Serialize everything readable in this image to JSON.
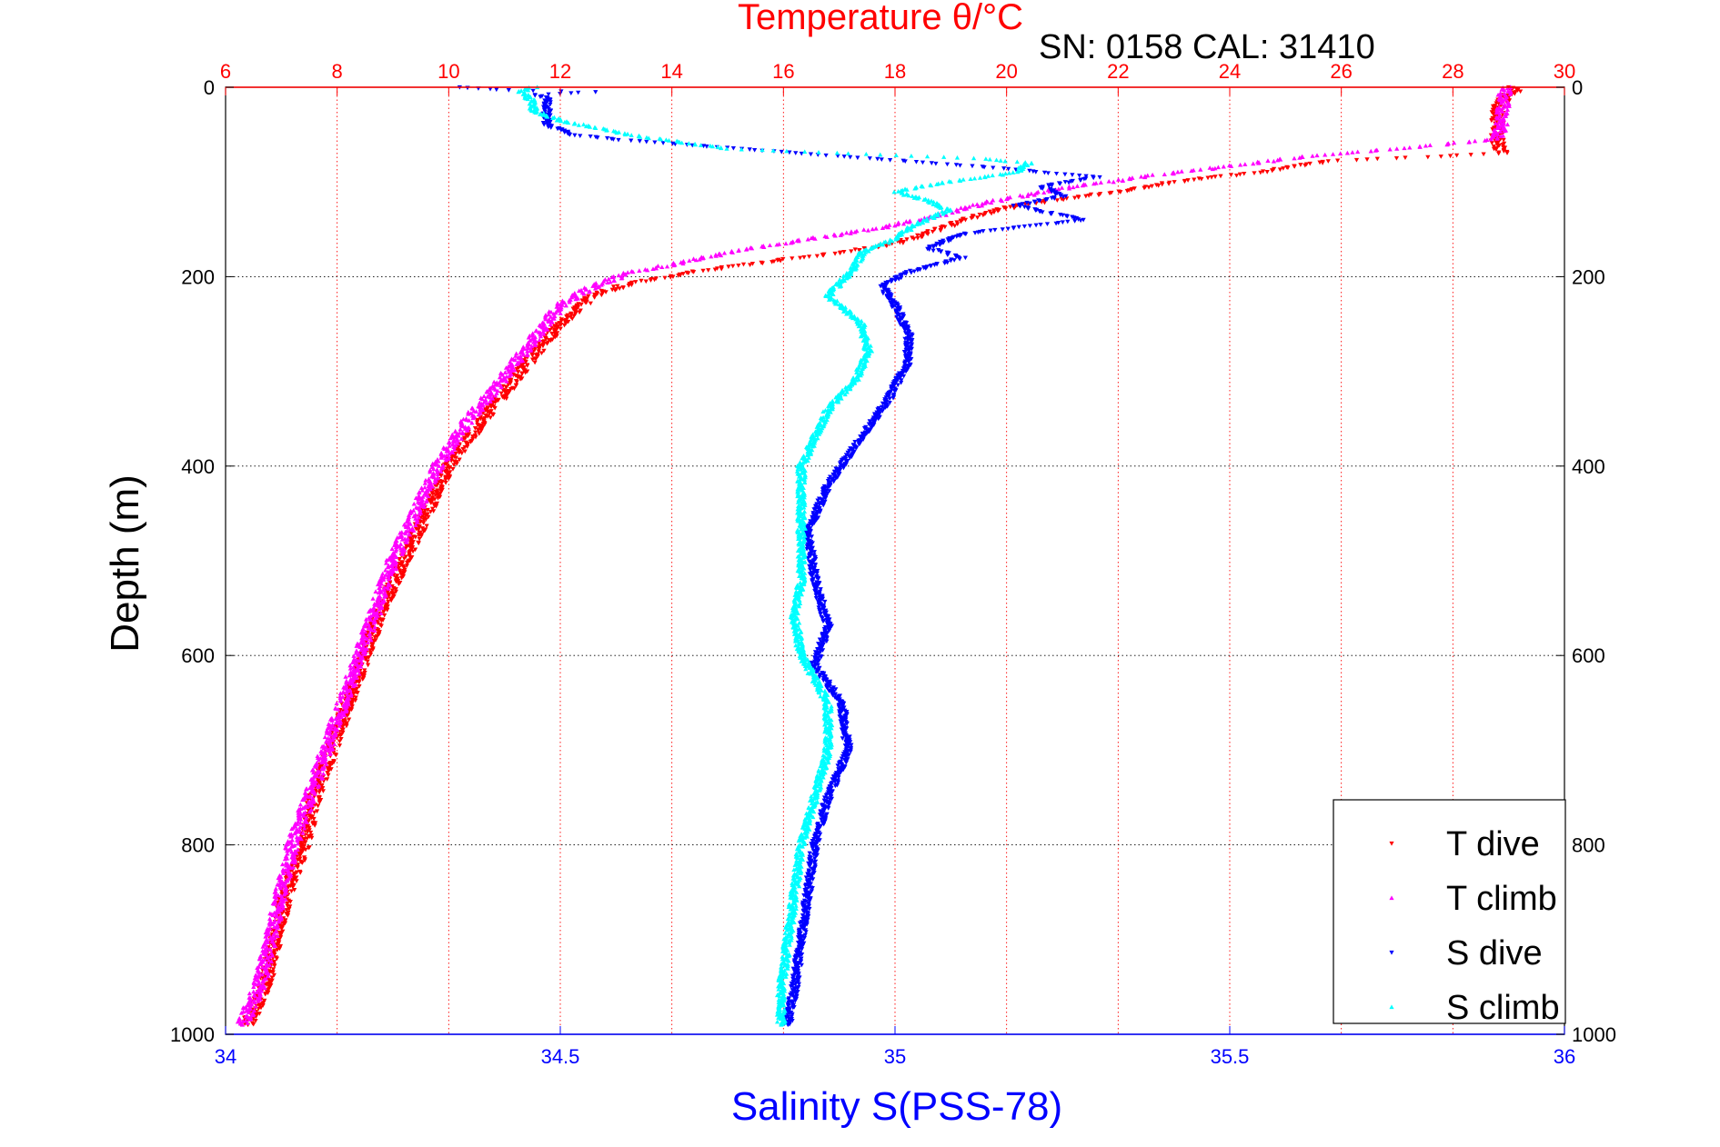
{
  "chart_data": {
    "type": "scatter",
    "title": "Temperature θ/°C",
    "annotation": "SN: 0158  CAL: 31410",
    "ylabel": "Depth (m)",
    "xlabel_bottom": "Salinity S(PSS-78)",
    "xlabel_top": "Temperature θ/°C",
    "ylim": [
      0,
      1000
    ],
    "y_reversed": true,
    "y_ticks": [
      0,
      200,
      400,
      600,
      800,
      1000
    ],
    "x_bottom": {
      "range": [
        34,
        36
      ],
      "ticks": [
        34,
        34.5,
        35,
        35.5,
        36
      ],
      "tick_labels": [
        "34",
        "34.5",
        "35",
        "35.5",
        "36"
      ],
      "color": "#0000ff"
    },
    "x_top": {
      "range": [
        6,
        30
      ],
      "ticks": [
        6,
        8,
        10,
        12,
        14,
        16,
        18,
        20,
        22,
        24,
        26,
        28,
        30
      ],
      "tick_labels": [
        "6",
        "8",
        "10",
        "12",
        "14",
        "16",
        "18",
        "20",
        "22",
        "24",
        "26",
        "28",
        "30"
      ],
      "color": "#ff0000"
    },
    "grid": true,
    "legend_position": "bottom-right",
    "series": [
      {
        "name": "T dive",
        "axis": "top",
        "marker": "triangle-down",
        "color": "#ff0000",
        "points": [
          [
            29.0,
            0
          ],
          [
            29.2,
            2
          ],
          [
            29.0,
            8
          ],
          [
            28.8,
            20
          ],
          [
            28.8,
            40
          ],
          [
            28.8,
            60
          ],
          [
            28.9,
            70
          ],
          [
            25.8,
            78
          ],
          [
            24.5,
            90
          ],
          [
            23.0,
            100
          ],
          [
            22.0,
            110
          ],
          [
            21.0,
            118
          ],
          [
            20.2,
            125
          ],
          [
            19.5,
            135
          ],
          [
            18.8,
            150
          ],
          [
            18.0,
            165
          ],
          [
            17.0,
            175
          ],
          [
            16.0,
            182
          ],
          [
            15.0,
            190
          ],
          [
            14.4,
            195
          ],
          [
            14.0,
            200
          ],
          [
            13.2,
            208
          ],
          [
            12.6,
            220
          ],
          [
            12.2,
            240
          ],
          [
            11.7,
            270
          ],
          [
            11.3,
            300
          ],
          [
            10.9,
            330
          ],
          [
            10.5,
            360
          ],
          [
            10.0,
            400
          ],
          [
            9.6,
            450
          ],
          [
            9.2,
            500
          ],
          [
            8.8,
            550
          ],
          [
            8.5,
            600
          ],
          [
            8.2,
            650
          ],
          [
            7.9,
            700
          ],
          [
            7.6,
            750
          ],
          [
            7.4,
            800
          ],
          [
            7.1,
            850
          ],
          [
            6.9,
            900
          ],
          [
            6.7,
            950
          ],
          [
            6.4,
            990
          ]
        ]
      },
      {
        "name": "T climb",
        "axis": "top",
        "marker": "triangle-up",
        "color": "#ff00ff",
        "points": [
          [
            29.0,
            0
          ],
          [
            28.9,
            10
          ],
          [
            28.9,
            30
          ],
          [
            28.8,
            55
          ],
          [
            27.0,
            65
          ],
          [
            25.5,
            72
          ],
          [
            24.2,
            82
          ],
          [
            22.8,
            92
          ],
          [
            21.2,
            105
          ],
          [
            19.8,
            120
          ],
          [
            18.8,
            135
          ],
          [
            17.8,
            148
          ],
          [
            16.5,
            160
          ],
          [
            15.2,
            172
          ],
          [
            14.2,
            185
          ],
          [
            13.3,
            195
          ],
          [
            12.6,
            210
          ],
          [
            12.0,
            230
          ],
          [
            11.6,
            260
          ],
          [
            11.2,
            290
          ],
          [
            10.8,
            320
          ],
          [
            10.3,
            355
          ],
          [
            9.8,
            400
          ],
          [
            9.4,
            450
          ],
          [
            9.0,
            500
          ],
          [
            8.7,
            550
          ],
          [
            8.4,
            600
          ],
          [
            8.1,
            650
          ],
          [
            7.8,
            700
          ],
          [
            7.5,
            750
          ],
          [
            7.2,
            800
          ],
          [
            7.0,
            850
          ],
          [
            6.8,
            900
          ],
          [
            6.6,
            950
          ],
          [
            6.3,
            990
          ]
        ]
      },
      {
        "name": "S dive",
        "axis": "bottom",
        "marker": "triangle-down",
        "color": "#0000ff",
        "points": [
          [
            34.35,
            0
          ],
          [
            34.42,
            3
          ],
          [
            34.55,
            5
          ],
          [
            34.46,
            8
          ],
          [
            34.48,
            12
          ],
          [
            34.48,
            25
          ],
          [
            34.48,
            40
          ],
          [
            34.52,
            50
          ],
          [
            34.58,
            55
          ],
          [
            35.15,
            85
          ],
          [
            35.3,
            95
          ],
          [
            35.22,
            105
          ],
          [
            35.25,
            115
          ],
          [
            35.18,
            125
          ],
          [
            35.28,
            140
          ],
          [
            35.1,
            155
          ],
          [
            35.05,
            170
          ],
          [
            35.1,
            180
          ],
          [
            35.02,
            195
          ],
          [
            34.98,
            210
          ],
          [
            35.0,
            230
          ],
          [
            35.02,
            260
          ],
          [
            35.02,
            290
          ],
          [
            34.99,
            330
          ],
          [
            34.95,
            370
          ],
          [
            34.9,
            420
          ],
          [
            34.87,
            470
          ],
          [
            34.88,
            520
          ],
          [
            34.9,
            570
          ],
          [
            34.88,
            610
          ],
          [
            34.92,
            650
          ],
          [
            34.93,
            700
          ],
          [
            34.9,
            750
          ],
          [
            34.88,
            800
          ],
          [
            34.87,
            850
          ],
          [
            34.86,
            900
          ],
          [
            34.85,
            950
          ],
          [
            34.84,
            990
          ]
        ]
      },
      {
        "name": "S climb",
        "axis": "bottom",
        "marker": "triangle-up",
        "color": "#00ffff",
        "points": [
          [
            34.46,
            0
          ],
          [
            34.44,
            5
          ],
          [
            34.46,
            15
          ],
          [
            34.46,
            25
          ],
          [
            34.5,
            35
          ],
          [
            34.6,
            50
          ],
          [
            34.75,
            65
          ],
          [
            35.12,
            75
          ],
          [
            35.2,
            80
          ],
          [
            35.18,
            90
          ],
          [
            35.08,
            100
          ],
          [
            35.0,
            110
          ],
          [
            35.05,
            120
          ],
          [
            35.08,
            130
          ],
          [
            35.03,
            145
          ],
          [
            35.0,
            160
          ],
          [
            34.95,
            175
          ],
          [
            34.94,
            190
          ],
          [
            34.92,
            205
          ],
          [
            34.9,
            220
          ],
          [
            34.95,
            250
          ],
          [
            34.96,
            280
          ],
          [
            34.94,
            310
          ],
          [
            34.9,
            340
          ],
          [
            34.88,
            370
          ],
          [
            34.86,
            400
          ],
          [
            34.86,
            440
          ],
          [
            34.86,
            480
          ],
          [
            34.86,
            520
          ],
          [
            34.85,
            560
          ],
          [
            34.86,
            600
          ],
          [
            34.9,
            650
          ],
          [
            34.9,
            700
          ],
          [
            34.88,
            750
          ],
          [
            34.86,
            800
          ],
          [
            34.85,
            850
          ],
          [
            34.84,
            900
          ],
          [
            34.83,
            950
          ],
          [
            34.83,
            990
          ]
        ]
      }
    ]
  }
}
